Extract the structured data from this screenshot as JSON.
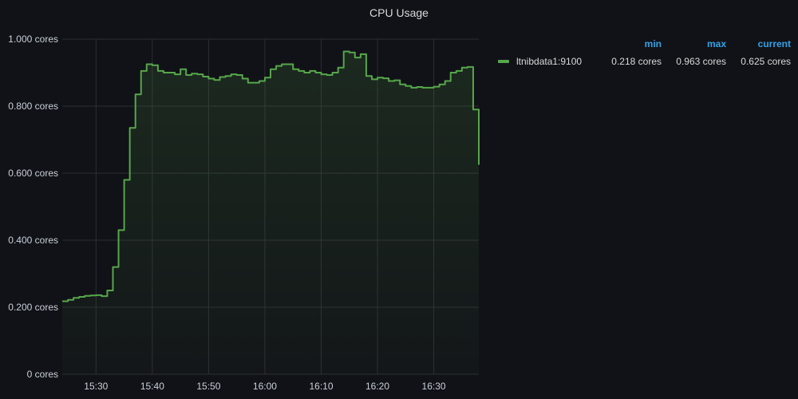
{
  "panel": {
    "title": "CPU Usage"
  },
  "colors": {
    "series": "#56a64b",
    "grid": "#2c2d31",
    "legend_header": "#33a2e5"
  },
  "legend": {
    "headers": {
      "min": "min",
      "max": "max",
      "current": "current"
    },
    "items": [
      {
        "name": "ltnibdata1:9100",
        "min": "0.218 cores",
        "max": "0.963 cores",
        "current": "0.625 cores"
      }
    ]
  },
  "chart_data": {
    "type": "area",
    "title": "CPU Usage",
    "xlabel": "",
    "ylabel": "",
    "grid": true,
    "legend_placement": "right",
    "xlim": [
      "15:24",
      "16:38"
    ],
    "ylim": [
      0,
      1.0
    ],
    "x_ticks": [
      "15:30",
      "15:40",
      "15:50",
      "16:00",
      "16:10",
      "16:20",
      "16:30"
    ],
    "y_ticks": [
      {
        "value": 0,
        "label": "0 cores"
      },
      {
        "value": 0.2,
        "label": "0.200 cores"
      },
      {
        "value": 0.4,
        "label": "0.400 cores"
      },
      {
        "value": 0.6,
        "label": "0.600 cores"
      },
      {
        "value": 0.8,
        "label": "0.800 cores"
      },
      {
        "value": 1.0,
        "label": "1.000 cores"
      }
    ],
    "series": [
      {
        "name": "ltnibdata1:9100",
        "x": [
          "15:24",
          "15:25",
          "15:26",
          "15:27",
          "15:28",
          "15:29",
          "15:30",
          "15:31",
          "15:32",
          "15:33",
          "15:34",
          "15:35",
          "15:36",
          "15:37",
          "15:38",
          "15:39",
          "15:40",
          "15:41",
          "15:42",
          "15:43",
          "15:44",
          "15:45",
          "15:46",
          "15:47",
          "15:48",
          "15:49",
          "15:50",
          "15:51",
          "15:52",
          "15:53",
          "15:54",
          "15:55",
          "15:56",
          "15:57",
          "15:58",
          "15:59",
          "16:00",
          "16:01",
          "16:02",
          "16:03",
          "16:04",
          "16:05",
          "16:06",
          "16:07",
          "16:08",
          "16:09",
          "16:10",
          "16:11",
          "16:12",
          "16:13",
          "16:14",
          "16:15",
          "16:16",
          "16:17",
          "16:18",
          "16:19",
          "16:20",
          "16:21",
          "16:22",
          "16:23",
          "16:24",
          "16:25",
          "16:26",
          "16:27",
          "16:28",
          "16:29",
          "16:30",
          "16:31",
          "16:32",
          "16:33",
          "16:34",
          "16:35",
          "16:36",
          "16:37",
          "16:38"
        ],
        "values": [
          0.218,
          0.222,
          0.228,
          0.231,
          0.234,
          0.235,
          0.236,
          0.233,
          0.25,
          0.32,
          0.43,
          0.58,
          0.735,
          0.835,
          0.905,
          0.925,
          0.922,
          0.905,
          0.9,
          0.9,
          0.895,
          0.91,
          0.893,
          0.897,
          0.895,
          0.888,
          0.882,
          0.878,
          0.887,
          0.89,
          0.895,
          0.893,
          0.882,
          0.87,
          0.87,
          0.875,
          0.885,
          0.91,
          0.92,
          0.925,
          0.925,
          0.91,
          0.905,
          0.9,
          0.905,
          0.9,
          0.895,
          0.893,
          0.9,
          0.915,
          0.963,
          0.96,
          0.945,
          0.955,
          0.89,
          0.88,
          0.885,
          0.883,
          0.875,
          0.877,
          0.865,
          0.86,
          0.855,
          0.857,
          0.855,
          0.855,
          0.858,
          0.865,
          0.875,
          0.9,
          0.905,
          0.915,
          0.917,
          0.79,
          0.625
        ]
      }
    ]
  }
}
